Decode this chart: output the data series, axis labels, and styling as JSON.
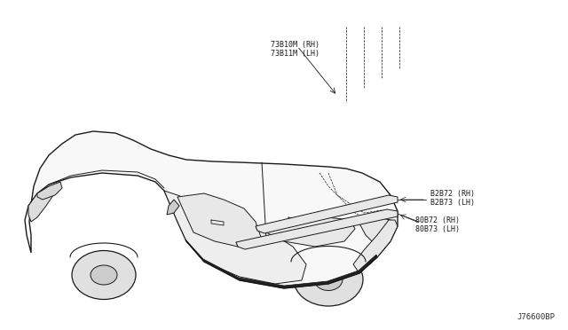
{
  "bg_color": "#ffffff",
  "line_color": "#1a1a1a",
  "label_color": "#1a1a1a",
  "fig_width": 6.4,
  "fig_height": 3.72,
  "dpi": 100,
  "watermark": "J76600BP",
  "labels": {
    "top_label1": "73B10M (RH)",
    "top_label2": "73B11M (LH)",
    "mid_label1": "B2B72 (RH)",
    "mid_label2": "B2B73 (LH)",
    "bot_label1": "80B72 (RH)",
    "bot_label2": "80B73 (LH)"
  }
}
